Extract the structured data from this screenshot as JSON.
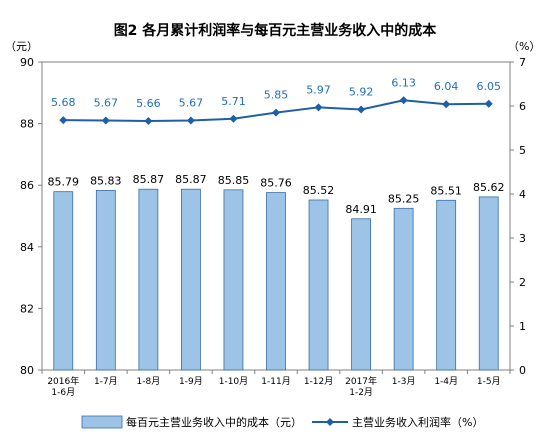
{
  "chart_data": {
    "type": "bar+line",
    "title": "图2  各月累计利润率与每百元主营业务收入中的成本",
    "left_unit": "（元）",
    "right_unit": "（%）",
    "categories": [
      [
        "2016年",
        "1-6月"
      ],
      [
        "1-7月"
      ],
      [
        "1-8月"
      ],
      [
        "1-9月"
      ],
      [
        "1-10月"
      ],
      [
        "1-11月"
      ],
      [
        "1-12月"
      ],
      [
        "2017年",
        "1-2月"
      ],
      [
        "1-3月"
      ],
      [
        "1-4月"
      ],
      [
        "1-5月"
      ]
    ],
    "series": [
      {
        "name": "每百元主营业务收入中的成本（元）",
        "type": "bar",
        "axis": "left",
        "color": "#9dc3e6",
        "stroke": "#3a6ea5",
        "values": [
          85.79,
          85.83,
          85.87,
          85.87,
          85.85,
          85.76,
          85.52,
          84.91,
          85.25,
          85.51,
          85.62
        ],
        "labels": [
          "85.79",
          "85.83",
          "85.87",
          "85.87",
          "85.85",
          "85.76",
          "85.52",
          "84.91",
          "85.25",
          "85.51",
          "85.62"
        ]
      },
      {
        "name": "主营业务收入利润率（%）",
        "type": "line",
        "axis": "right",
        "color": "#1f5fa8",
        "label_color": "#1f6fbf",
        "values": [
          5.68,
          5.67,
          5.66,
          5.67,
          5.71,
          5.85,
          5.97,
          5.92,
          6.13,
          6.04,
          6.05
        ],
        "labels": [
          "5.68",
          "5.67",
          "5.66",
          "5.67",
          "5.71",
          "5.85",
          "5.97",
          "5.92",
          "6.13",
          "6.04",
          "6.05"
        ]
      }
    ],
    "left_axis": {
      "min": 80,
      "max": 90,
      "ticks": [
        "80",
        "82",
        "84",
        "86",
        "88",
        "90"
      ]
    },
    "right_axis": {
      "min": 0,
      "max": 7,
      "ticks": [
        "0",
        "1",
        "2",
        "3",
        "4",
        "5",
        "6",
        "7"
      ]
    },
    "legend_position": "bottom",
    "grid": false
  }
}
